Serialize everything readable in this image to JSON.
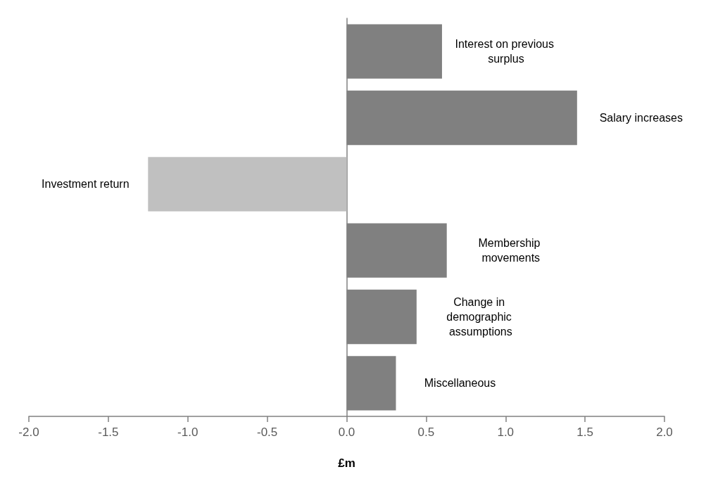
{
  "chart_data": {
    "type": "bar",
    "orientation": "horizontal",
    "xlabel": "£m",
    "categories": [
      "Interest on previous surplus",
      "Salary increases",
      "Investment return",
      "Membership movements",
      "Change in demographic assumptions",
      "Miscellaneous"
    ],
    "values": [
      0.6,
      1.45,
      -1.25,
      0.63,
      0.44,
      0.31
    ],
    "colors": [
      "#808080",
      "#808080",
      "#c0c0c0",
      "#808080",
      "#808080",
      "#808080"
    ],
    "xlim": [
      -2,
      2
    ],
    "xticks": [
      {
        "value": -2,
        "label": "-2.0"
      },
      {
        "value": -1.5,
        "label": "-1.5"
      },
      {
        "value": -1,
        "label": "-1.0"
      },
      {
        "value": -0.5,
        "label": "-0.5"
      },
      {
        "value": 0,
        "label": "0.0"
      },
      {
        "value": 0.5,
        "label": "0.5"
      },
      {
        "value": 1,
        "label": "1.0"
      },
      {
        "value": 1.5,
        "label": "1.5"
      },
      {
        "value": 2,
        "label": "2.0"
      }
    ]
  }
}
